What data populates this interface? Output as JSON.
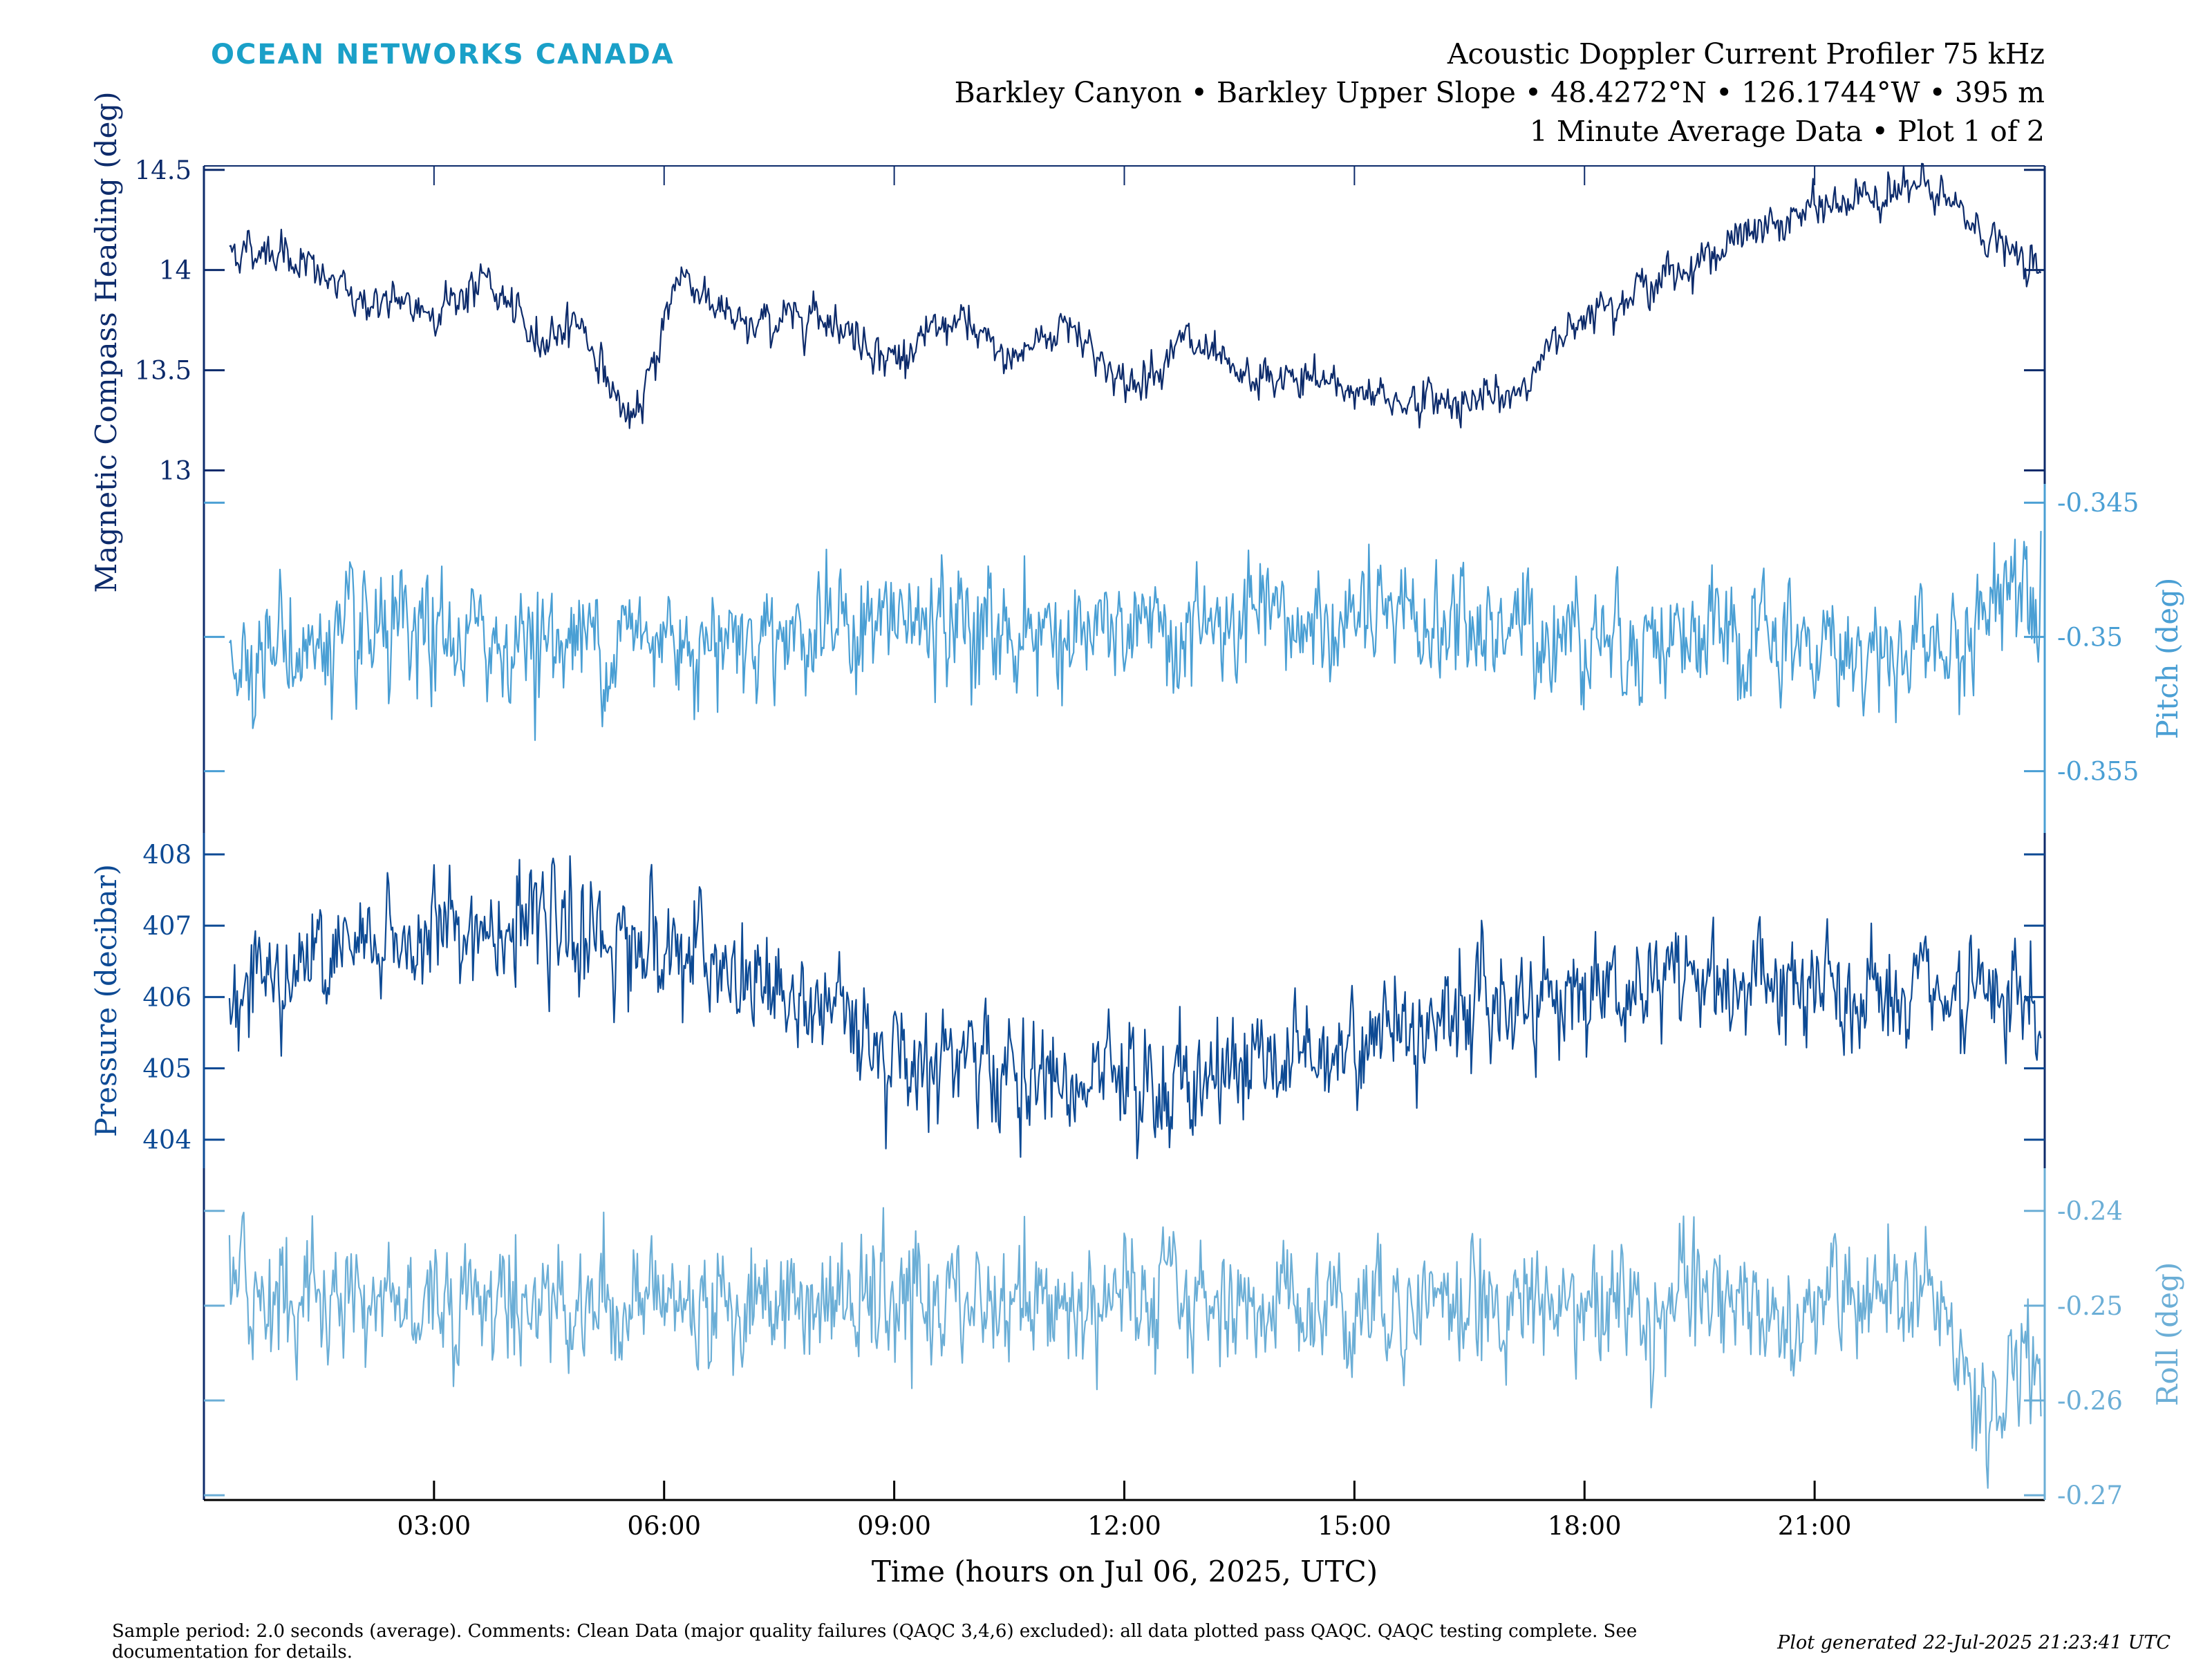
{
  "brand": "OCEAN NETWORKS CANADA",
  "header": {
    "line1": "Acoustic Doppler Current Profiler 75 kHz",
    "line2": "Barkley Canyon • Barkley Upper Slope • 48.4272°N • 126.1744°W • 395 m",
    "line3": "1 Minute Average Data • Plot 1 of 2"
  },
  "footer": {
    "note_line1": "Sample period: 2.0 seconds (average). Comments: Clean Data (major quality failures (QAQC 3,4,6) excluded): all data plotted pass QAQC. QAQC testing complete. See",
    "note_line2": "documentation for details.",
    "generated": "Plot generated 22-Jul-2025 21:23:41 UTC"
  },
  "colors": {
    "heading": "#0d2b6b",
    "pitch": "#4a9fd4",
    "pressure": "#0d4a94",
    "roll": "#6baed6",
    "brand": "#1aa0c8"
  },
  "chart_data": {
    "type": "line",
    "xlabel": "Time (hours on Jul 06, 2025, UTC)",
    "xlim": [
      0,
      24
    ],
    "x_ticks": [
      3,
      6,
      9,
      12,
      15,
      18,
      21
    ],
    "x_tick_labels": [
      "03:00",
      "06:00",
      "09:00",
      "12:00",
      "15:00",
      "18:00",
      "21:00"
    ],
    "grid": false,
    "panels": [
      {
        "name": "heading",
        "ylabel": "Magnetic Compass Heading (deg)",
        "axis_side": "left",
        "ylim": [
          12.76,
          14.52
        ],
        "y_ticks": [
          13,
          13.5,
          14,
          14.5
        ],
        "y_tick_labels": [
          "13",
          "13.5",
          "14",
          "14.5"
        ],
        "noise": 0.05,
        "series": {
          "x": [
            0.3,
            1.0,
            2.0,
            3.0,
            3.7,
            4.3,
            4.9,
            5.2,
            5.6,
            6.2,
            7.0,
            8.0,
            9.0,
            9.8,
            10.5,
            11.3,
            12.0,
            12.8,
            13.5,
            14.5,
            15.5,
            16.5,
            17.0,
            18.0,
            19.0,
            20.0,
            21.0,
            22.0,
            22.5,
            23.5,
            24.0
          ],
          "values": [
            14.1,
            14.1,
            13.85,
            13.8,
            13.95,
            13.65,
            13.75,
            13.5,
            13.2,
            14.0,
            13.7,
            13.8,
            13.55,
            13.75,
            13.55,
            13.75,
            13.4,
            13.65,
            13.45,
            13.45,
            13.35,
            13.35,
            13.35,
            13.8,
            13.95,
            14.15,
            14.3,
            14.4,
            14.4,
            14.1,
            13.95
          ]
        }
      },
      {
        "name": "pitch",
        "ylabel": "Pitch (deg)",
        "axis_side": "right",
        "ylim": [
          -0.3573,
          -0.3443
        ],
        "y_ticks": [
          -0.355,
          -0.35,
          -0.345
        ],
        "y_tick_labels": [
          "-0.355",
          "-0.35",
          "-0.345"
        ],
        "noise": 0.0011,
        "series": {
          "x": [
            0.3,
            3.0,
            6.0,
            9.0,
            12.0,
            15.0,
            18.0,
            21.0,
            23.0,
            23.5,
            24.0
          ],
          "values": [
            -0.3505,
            -0.3502,
            -0.35,
            -0.3495,
            -0.35,
            -0.3495,
            -0.3498,
            -0.3505,
            -0.3505,
            -0.3475,
            -0.348
          ]
        }
      },
      {
        "name": "pressure",
        "ylabel": "Pressure (decibar)",
        "axis_side": "left",
        "ylim": [
          403.6,
          408.3
        ],
        "y_ticks": [
          404,
          405,
          406,
          407,
          408
        ],
        "y_tick_labels": [
          "404",
          "405",
          "406",
          "407",
          "408"
        ],
        "noise": 0.4,
        "series": {
          "x": [
            0.3,
            2.0,
            3.5,
            5.0,
            6.0,
            7.0,
            8.0,
            9.0,
            10.5,
            11.5,
            12.5,
            13.5,
            15.0,
            16.5,
            18.0,
            19.5,
            21.0,
            22.5,
            24.0
          ],
          "values": [
            406.2,
            406.6,
            407.0,
            406.9,
            406.7,
            406.2,
            405.8,
            405.3,
            404.9,
            404.7,
            404.7,
            405.0,
            405.4,
            405.9,
            406.1,
            406.3,
            406.0,
            405.9,
            405.8
          ]
        }
      },
      {
        "name": "roll",
        "ylabel": "Roll (deg)",
        "axis_side": "right",
        "ylim": [
          -0.2705,
          -0.2355
        ],
        "y_ticks": [
          -0.27,
          -0.26,
          -0.25,
          -0.24
        ],
        "y_tick_labels": [
          "-0.27",
          "-0.26",
          "-0.25",
          "-0.24"
        ],
        "noise": 0.0032,
        "series": {
          "x": [
            0.3,
            5.0,
            10.0,
            15.0,
            20.0,
            22.5,
            23.2,
            23.6,
            24.0
          ],
          "values": [
            -0.2485,
            -0.2495,
            -0.25,
            -0.2495,
            -0.25,
            -0.25,
            -0.262,
            -0.258,
            -0.255
          ]
        }
      }
    ]
  }
}
